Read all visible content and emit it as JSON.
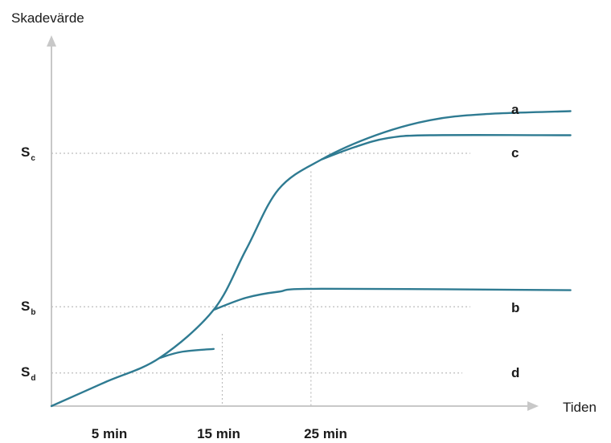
{
  "chart_data": {
    "type": "line",
    "ylabel": "Skadevärde",
    "xlabel": "Tiden",
    "x_ticks": [
      "5 min",
      "15 min",
      "25 min"
    ],
    "y_ticks": [
      {
        "main": "S",
        "sub": "c"
      },
      {
        "main": "S",
        "sub": "b"
      },
      {
        "main": "S",
        "sub": "d"
      }
    ],
    "axis_color": "#c8c8c8",
    "line_color": "#2f7b92",
    "grid_color": "#bdbdbd",
    "series": [
      {
        "name": "a",
        "points": [
          [
            0,
            0
          ],
          [
            5,
            0.08
          ],
          [
            10,
            0.16
          ],
          [
            15,
            0.32
          ],
          [
            18,
            0.52
          ],
          [
            21,
            0.72
          ],
          [
            25,
            0.82
          ],
          [
            30,
            0.9
          ],
          [
            35,
            0.95
          ],
          [
            40,
            0.97
          ],
          [
            48,
            0.98
          ]
        ]
      },
      {
        "name": "c",
        "points": [
          [
            25,
            0.82
          ],
          [
            28,
            0.86
          ],
          [
            31,
            0.89
          ],
          [
            35,
            0.9
          ],
          [
            48,
            0.9
          ]
        ]
      },
      {
        "name": "b",
        "points": [
          [
            15,
            0.32
          ],
          [
            18,
            0.36
          ],
          [
            21,
            0.38
          ],
          [
            25,
            0.39
          ],
          [
            48,
            0.385
          ]
        ]
      },
      {
        "name": "d",
        "points": [
          [
            10,
            0.16
          ],
          [
            12,
            0.18
          ],
          [
            15,
            0.19
          ]
        ]
      }
    ]
  }
}
